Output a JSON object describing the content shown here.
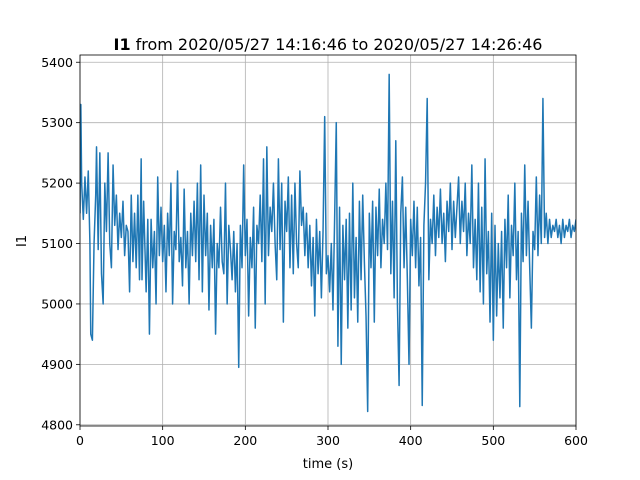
{
  "chart_data": {
    "type": "line",
    "title_bold": "I1",
    "title": "from 2020/05/27 14:16:46 to 2020/05/27 14:26:46",
    "x_label": "time (s)",
    "y_label": "I1",
    "color": "#1f77b4",
    "grid": true,
    "xlim": [
      0,
      600
    ],
    "ylim": [
      4798,
      5412
    ],
    "xticks": [
      0,
      100,
      200,
      300,
      400,
      500,
      600
    ],
    "yticks": [
      4800,
      4900,
      5000,
      5100,
      5200,
      5300,
      5400
    ],
    "x": [
      0,
      1,
      2,
      4,
      6,
      8,
      10,
      12,
      13,
      15,
      17,
      19,
      20,
      22,
      24,
      26,
      28,
      30,
      32,
      34,
      36,
      38,
      40,
      42,
      44,
      46,
      48,
      50,
      52,
      54,
      56,
      58,
      60,
      62,
      64,
      66,
      68,
      70,
      72,
      74,
      75,
      77,
      80,
      82,
      84,
      86,
      88,
      90,
      92,
      94,
      96,
      98,
      100,
      102,
      104,
      106,
      108,
      110,
      112,
      114,
      116,
      118,
      120,
      122,
      124,
      126,
      128,
      130,
      132,
      134,
      136,
      138,
      140,
      142,
      144,
      146,
      148,
      150,
      152,
      154,
      156,
      158,
      160,
      162,
      164,
      166,
      168,
      170,
      172,
      174,
      176,
      178,
      180,
      182,
      184,
      186,
      188,
      190,
      192,
      194,
      196,
      198,
      200,
      202,
      204,
      206,
      208,
      210,
      212,
      214,
      216,
      218,
      220,
      222,
      224,
      226,
      228,
      230,
      232,
      234,
      236,
      238,
      240,
      242,
      244,
      246,
      248,
      250,
      252,
      254,
      256,
      258,
      260,
      262,
      264,
      266,
      268,
      270,
      272,
      274,
      276,
      278,
      280,
      282,
      284,
      286,
      288,
      290,
      292,
      294,
      296,
      298,
      300,
      302,
      304,
      306,
      308,
      310,
      312,
      314,
      316,
      318,
      320,
      322,
      324,
      326,
      328,
      330,
      332,
      334,
      336,
      338,
      340,
      342,
      344,
      346,
      348,
      350,
      352,
      354,
      356,
      358,
      360,
      362,
      364,
      366,
      368,
      370,
      372,
      374,
      376,
      378,
      380,
      382,
      384,
      386,
      388,
      390,
      392,
      394,
      396,
      398,
      400,
      402,
      404,
      406,
      408,
      410,
      412,
      414,
      416,
      418,
      420,
      422,
      424,
      426,
      428,
      430,
      432,
      434,
      436,
      438,
      440,
      442,
      444,
      446,
      448,
      450,
      452,
      454,
      456,
      458,
      460,
      462,
      464,
      466,
      468,
      470,
      472,
      474,
      476,
      478,
      480,
      482,
      484,
      486,
      488,
      490,
      492,
      494,
      496,
      498,
      500,
      502,
      504,
      506,
      508,
      510,
      512,
      514,
      516,
      518,
      520,
      522,
      524,
      526,
      528,
      530,
      532,
      534,
      536,
      538,
      540,
      542,
      544,
      546,
      548,
      550,
      552,
      554,
      556,
      558,
      560,
      562,
      564,
      566,
      568,
      570,
      572,
      574,
      576,
      578,
      580,
      582,
      584,
      586,
      588,
      590,
      592,
      594,
      596,
      598,
      600
    ],
    "values": [
      5150,
      5330,
      5200,
      5140,
      5210,
      5150,
      5220,
      5100,
      4950,
      4940,
      5100,
      5180,
      5260,
      5090,
      5250,
      5050,
      5000,
      5200,
      5120,
      5250,
      5100,
      5060,
      5230,
      5130,
      5180,
      5090,
      5150,
      5110,
      5170,
      5080,
      5130,
      5120,
      5020,
      5180,
      5070,
      5150,
      5060,
      5180,
      5040,
      5240,
      5040,
      5170,
      5020,
      5140,
      4950,
      5140,
      5060,
      5120,
      5000,
      5210,
      5080,
      5160,
      5070,
      5130,
      5020,
      5150,
      5080,
      5200,
      5000,
      5120,
      5090,
      5220,
      5070,
      5110,
      5030,
      5190,
      5060,
      5120,
      5000,
      5150,
      5080,
      5170,
      5070,
      5200,
      5040,
      5230,
      5020,
      5180,
      5080,
      5150,
      4990,
      5130,
      5060,
      5140,
      4950,
      5100,
      5060,
      5160,
      5070,
      5050,
      5200,
      5000,
      5130,
      5090,
      5040,
      5120,
      5020,
      5100,
      4895,
      5130,
      5060,
      5230,
      5080,
      5140,
      4980,
      5110,
      5060,
      5160,
      4960,
      5130,
      5100,
      5180,
      5070,
      5240,
      5000,
      5260,
      5080,
      5160,
      5120,
      5200,
      5100,
      5040,
      5240,
      5090,
      5200,
      4970,
      5170,
      5120,
      5210,
      5060,
      5180,
      5050,
      5200,
      5100,
      5060,
      5220,
      5130,
      5160,
      5080,
      5150,
      5060,
      5130,
      5030,
      5110,
      4980,
      5140,
      5050,
      5120,
      5010,
      5120,
      5310,
      5050,
      5080,
      5020,
      5100,
      4990,
      5140,
      5300,
      4930,
      5160,
      4900,
      5130,
      5040,
      5140,
      4960,
      5150,
      4990,
      5200,
      5010,
      5110,
      4970,
      5170,
      5040,
      5180,
      5070,
      4980,
      4822,
      5150,
      5060,
      5170,
      4970,
      5160,
      5080,
      5190,
      5060,
      5140,
      5100,
      5200,
      5090,
      5380,
      5050,
      5170,
      5010,
      5270,
      5000,
      4865,
      5150,
      5210,
      5060,
      5160,
      5040,
      4900,
      5140,
      5080,
      5170,
      5060,
      5160,
      5030,
      5110,
      4832,
      5130,
      5200,
      5340,
      5040,
      5140,
      5100,
      5180,
      5080,
      5160,
      5110,
      5190,
      5100,
      5150,
      5070,
      5170,
      5120,
      5200,
      5090,
      5170,
      5110,
      5160,
      5210,
      5100,
      5170,
      5120,
      5200,
      5080,
      5150,
      5100,
      5230,
      5060,
      5140,
      5040,
      5200,
      5020,
      5160,
      5000,
      5240,
      5050,
      5120,
      4970,
      5150,
      4940,
      5130,
      4980,
      5100,
      5010,
      5120,
      4960,
      5140,
      5060,
      5180,
      5010,
      5130,
      5080,
      5200,
      5040,
      5120,
      4830,
      5150,
      5070,
      5230,
      5080,
      5170,
      5060,
      4960,
      5120,
      5090,
      5210,
      5080,
      5180,
      5100,
      5340,
      5110,
      5150,
      5100,
      5140,
      5110,
      5130,
      5120,
      5140,
      5110,
      5130,
      5100,
      5140,
      5110,
      5130,
      5120,
      5140,
      5110,
      5130,
      5120,
      5140
    ]
  }
}
